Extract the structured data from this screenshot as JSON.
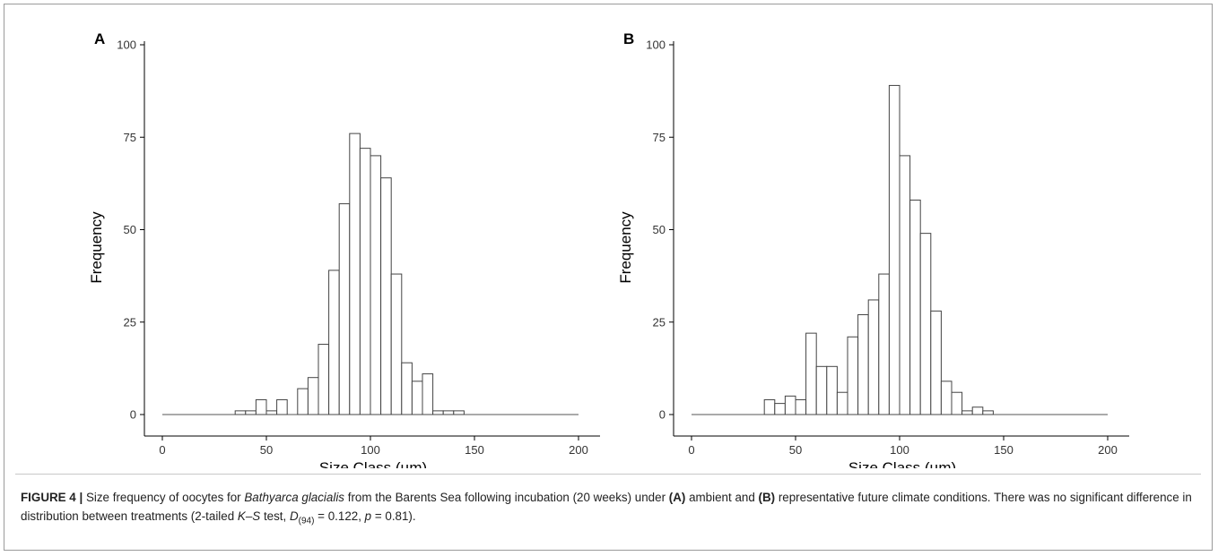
{
  "chart_data": [
    {
      "type": "bar",
      "panel": "A",
      "xlabel": "Size Class (µm)",
      "ylabel": "Frequency",
      "xlim": [
        0,
        200
      ],
      "ylim": [
        0,
        100
      ],
      "xticks": [
        0,
        50,
        100,
        150,
        200
      ],
      "yticks": [
        0,
        25,
        50,
        75,
        100
      ],
      "bin_width": 5,
      "bins": [
        {
          "x0": 35,
          "value": 1
        },
        {
          "x0": 40,
          "value": 1
        },
        {
          "x0": 45,
          "value": 4
        },
        {
          "x0": 50,
          "value": 1
        },
        {
          "x0": 55,
          "value": 4
        },
        {
          "x0": 60,
          "value": 0
        },
        {
          "x0": 65,
          "value": 7
        },
        {
          "x0": 70,
          "value": 10
        },
        {
          "x0": 75,
          "value": 19
        },
        {
          "x0": 80,
          "value": 39
        },
        {
          "x0": 85,
          "value": 57
        },
        {
          "x0": 90,
          "value": 76
        },
        {
          "x0": 95,
          "value": 72
        },
        {
          "x0": 100,
          "value": 70
        },
        {
          "x0": 105,
          "value": 64
        },
        {
          "x0": 110,
          "value": 38
        },
        {
          "x0": 115,
          "value": 14
        },
        {
          "x0": 120,
          "value": 9
        },
        {
          "x0": 125,
          "value": 11
        },
        {
          "x0": 130,
          "value": 1
        },
        {
          "x0": 135,
          "value": 1
        },
        {
          "x0": 140,
          "value": 1
        }
      ]
    },
    {
      "type": "bar",
      "panel": "B",
      "xlabel": "Size Class (µm)",
      "ylabel": "Frequency",
      "xlim": [
        0,
        200
      ],
      "ylim": [
        0,
        100
      ],
      "xticks": [
        0,
        50,
        100,
        150,
        200
      ],
      "yticks": [
        0,
        25,
        50,
        75,
        100
      ],
      "bin_width": 5,
      "bins": [
        {
          "x0": 35,
          "value": 4
        },
        {
          "x0": 40,
          "value": 3
        },
        {
          "x0": 45,
          "value": 5
        },
        {
          "x0": 50,
          "value": 4
        },
        {
          "x0": 55,
          "value": 22
        },
        {
          "x0": 60,
          "value": 13
        },
        {
          "x0": 65,
          "value": 13
        },
        {
          "x0": 70,
          "value": 6
        },
        {
          "x0": 75,
          "value": 21
        },
        {
          "x0": 80,
          "value": 27
        },
        {
          "x0": 85,
          "value": 31
        },
        {
          "x0": 90,
          "value": 38
        },
        {
          "x0": 95,
          "value": 89
        },
        {
          "x0": 100,
          "value": 70
        },
        {
          "x0": 105,
          "value": 58
        },
        {
          "x0": 110,
          "value": 49
        },
        {
          "x0": 115,
          "value": 28
        },
        {
          "x0": 120,
          "value": 9
        },
        {
          "x0": 125,
          "value": 6
        },
        {
          "x0": 130,
          "value": 1
        },
        {
          "x0": 135,
          "value": 2
        },
        {
          "x0": 140,
          "value": 1
        }
      ]
    }
  ],
  "caption": {
    "label": "FIGURE 4 |",
    "t1": " Size frequency of oocytes for ",
    "species": "Bathyarca glacialis",
    "t2": " from the Barents Sea following incubation (20 weeks) under ",
    "a_ref": "(A)",
    "t3": " ambient and ",
    "b_ref": "(B)",
    "t4": " representative future climate conditions. There was no significant difference in distribution between treatments (2-tailed ",
    "test": "K–S",
    "t5": " test, ",
    "stat": "D",
    "df": "(94)",
    "t6": " = 0.122, ",
    "p": "p",
    "t7": " = 0.81)."
  }
}
